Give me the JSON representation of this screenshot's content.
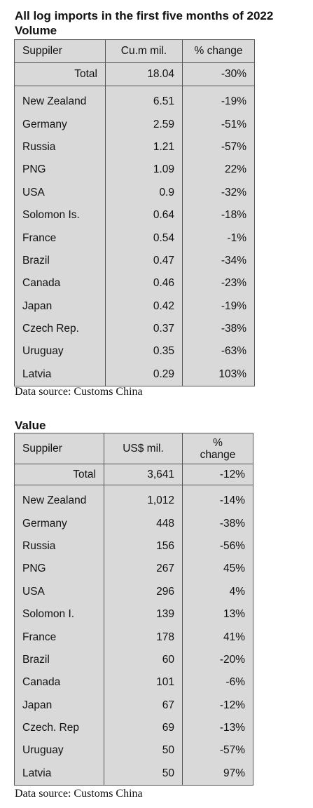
{
  "title": "All log imports in the first five months of 2022",
  "volume": {
    "section_title": "Volume",
    "headers": [
      "Suppiler",
      "Cu.m mil.",
      "% change"
    ],
    "total": {
      "label": "Total",
      "amount": "18.04",
      "change": "-30%"
    },
    "rows": [
      {
        "country": "New Zealand",
        "amount": "6.51",
        "change": "-19%"
      },
      {
        "country": "Germany",
        "amount": "2.59",
        "change": "-51%"
      },
      {
        "country": "Russia",
        "amount": "1.21",
        "change": "-57%"
      },
      {
        "country": "PNG",
        "amount": "1.09",
        "change": "22%"
      },
      {
        "country": "USA",
        "amount": "0.9",
        "change": "-32%"
      },
      {
        "country": "Solomon Is.",
        "amount": "0.64",
        "change": "-18%"
      },
      {
        "country": "France",
        "amount": "0.54",
        "change": "-1%"
      },
      {
        "country": "Brazil",
        "amount": "0.47",
        "change": "-34%"
      },
      {
        "country": "Canada",
        "amount": "0.46",
        "change": "-23%"
      },
      {
        "country": "Japan",
        "amount": "0.42",
        "change": "-19%"
      },
      {
        "country": "Czech Rep.",
        "amount": "0.37",
        "change": "-38%"
      },
      {
        "country": "Uruguay",
        "amount": "0.35",
        "change": "-63%"
      },
      {
        "country": "Latvia",
        "amount": "0.29",
        "change": "103%"
      }
    ],
    "source": "Data source: Customs China"
  },
  "value": {
    "section_title": "Value",
    "headers": [
      "Suppiler",
      "US$ mil.",
      "%",
      "change"
    ],
    "total": {
      "label": "Total",
      "amount": "3,641",
      "change": "-12%"
    },
    "rows": [
      {
        "country": "New Zealand",
        "amount": "1,012",
        "change": "-14%"
      },
      {
        "country": "Germany",
        "amount": "448",
        "change": "-38%"
      },
      {
        "country": "Russia",
        "amount": "156",
        "change": "-56%"
      },
      {
        "country": "PNG",
        "amount": "267",
        "change": "45%"
      },
      {
        "country": "USA",
        "amount": "296",
        "change": "4%"
      },
      {
        "country": "Solomon I.",
        "amount": "139",
        "change": "13%"
      },
      {
        "country": "France",
        "amount": "178",
        "change": "41%"
      },
      {
        "country": "Brazil",
        "amount": "60",
        "change": "-20%"
      },
      {
        "country": "Canada",
        "amount": "101",
        "change": "-6%"
      },
      {
        "country": "Japan",
        "amount": "67",
        "change": "-12%"
      },
      {
        "country": "Czech. Rep",
        "amount": "69",
        "change": "-13%"
      },
      {
        "country": "Uruguay",
        "amount": "50",
        "change": "-57%"
      },
      {
        "country": "Latvia",
        "amount": "50",
        "change": "97%"
      }
    ],
    "source": "Data source: Customs China"
  },
  "colors": {
    "table_background": "#d9d9d9",
    "border": "#555555",
    "text": "#111111"
  }
}
